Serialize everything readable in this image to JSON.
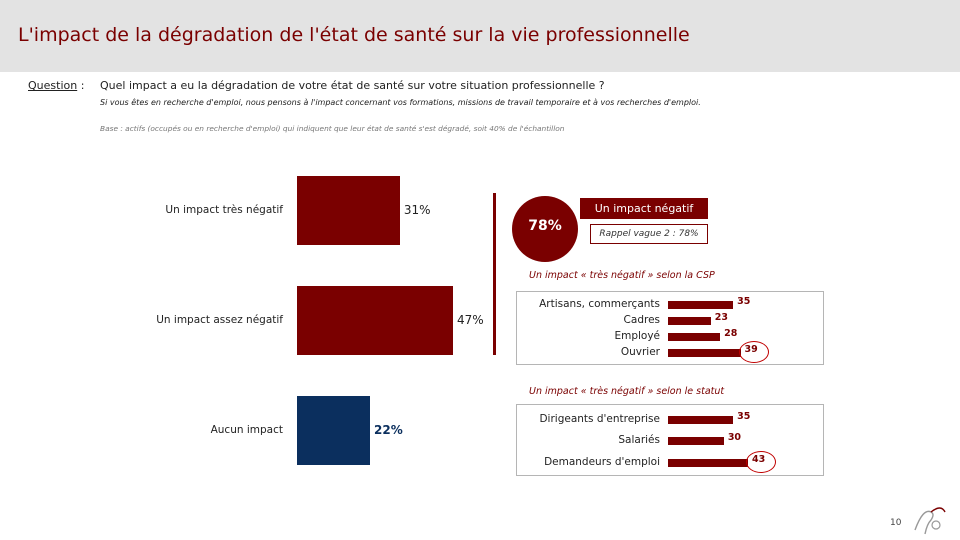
{
  "title": "L'impact de la dégradation de l'état de santé sur la vie professionnelle",
  "question": {
    "label": "Question",
    "label_suffix": " :",
    "text": "Quel impact a eu la dégradation de votre état de santé sur votre situation professionnelle ?",
    "sub": "Si vous êtes en recherche d'emploi, nous pensons à l'impact concernant vos formations, missions de travail temporaire et à vos recherches d'emploi."
  },
  "base": "Base : actifs (occupés ou en recherche d'emploi) qui indiquent que leur état de santé s'est dégradé, soit 40% de l'échantillon",
  "colors": {
    "accent": "#7a0000",
    "blue": "#0b2f5e",
    "header_bg": "#e3e3e3"
  },
  "summary": {
    "total": "78%",
    "label": "Un impact négatif",
    "rappel": "Rappel vague 2 : 78%"
  },
  "chart_data": [
    {
      "type": "bar",
      "orientation": "horizontal",
      "categories": [
        "Un impact très négatif",
        "Un impact assez négatif",
        "Aucun impact"
      ],
      "values": [
        31,
        47,
        22
      ],
      "value_labels": [
        "31%",
        "47%",
        "22%"
      ],
      "colors": [
        "#7a0000",
        "#7a0000",
        "#0b2f5e"
      ],
      "xlim": [
        0,
        47
      ]
    },
    {
      "type": "bar",
      "orientation": "horizontal",
      "title": "Un impact « très négatif » selon la CSP",
      "categories": [
        "Artisans, commerçants",
        "Cadres",
        "Employé",
        "Ouvrier"
      ],
      "values": [
        35,
        23,
        28,
        39
      ],
      "value_labels": [
        "35",
        "23",
        "28",
        "39"
      ],
      "highlighted": [
        "Ouvrier"
      ],
      "xlim": [
        0,
        43
      ]
    },
    {
      "type": "bar",
      "orientation": "horizontal",
      "title": "Un impact « très négatif » selon le statut",
      "categories": [
        "Dirigeants d'entreprise",
        "Salariés",
        "Demandeurs d'emploi"
      ],
      "values": [
        35,
        30,
        43
      ],
      "value_labels": [
        "35",
        "30",
        "43"
      ],
      "highlighted": [
        "Demandeurs d'emploi"
      ],
      "xlim": [
        0,
        43
      ]
    }
  ],
  "page_number": "10"
}
